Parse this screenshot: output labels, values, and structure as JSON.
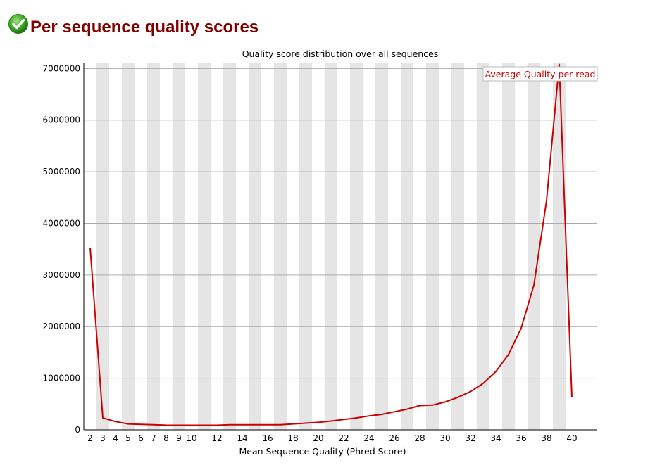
{
  "header": {
    "title": "Per sequence quality scores",
    "status_icon": "check-circle-icon",
    "status_color": "#3ea828"
  },
  "chart_data": {
    "type": "line",
    "title": "Quality score distribution over all sequences",
    "xlabel": "Mean Sequence Quality (Phred Score)",
    "ylabel": "",
    "x": [
      2,
      3,
      4,
      5,
      6,
      7,
      8,
      9,
      10,
      11,
      12,
      13,
      14,
      15,
      16,
      17,
      18,
      19,
      20,
      21,
      22,
      23,
      24,
      25,
      26,
      27,
      28,
      29,
      30,
      31,
      32,
      33,
      34,
      35,
      36,
      37,
      38,
      39,
      40
    ],
    "x_tick_labels": [
      "2",
      "3",
      "4",
      "5",
      "6",
      "7",
      "8",
      "9",
      "10",
      "12",
      "14",
      "16",
      "18",
      "20",
      "22",
      "24",
      "26",
      "28",
      "30",
      "32",
      "34",
      "36",
      "38",
      "40"
    ],
    "y_ticks": [
      0,
      1000000,
      2000000,
      3000000,
      4000000,
      5000000,
      6000000,
      7000000
    ],
    "y_tick_labels": [
      "0",
      "1000000",
      "2000000",
      "3000000",
      "4000000",
      "5000000",
      "6000000",
      "7000000"
    ],
    "xlim": [
      2,
      40
    ],
    "ylim": [
      0,
      7100000
    ],
    "grid": "horizontal lines, alternating vertical bands",
    "legend_position": "top-right",
    "series": [
      {
        "name": "Average Quality per read",
        "color": "#cc0000",
        "values": [
          3530000,
          230000,
          160000,
          115000,
          105000,
          100000,
          90000,
          88000,
          88000,
          88000,
          88000,
          100000,
          100000,
          100000,
          100000,
          100000,
          115000,
          130000,
          145000,
          170000,
          200000,
          230000,
          270000,
          300000,
          350000,
          400000,
          470000,
          480000,
          540000,
          630000,
          740000,
          900000,
          1130000,
          1460000,
          1970000,
          2800000,
          4440000,
          7080000,
          630000
        ]
      }
    ],
    "band_color": "#e5e5e5",
    "gridline_color": "#aaaaaa"
  }
}
